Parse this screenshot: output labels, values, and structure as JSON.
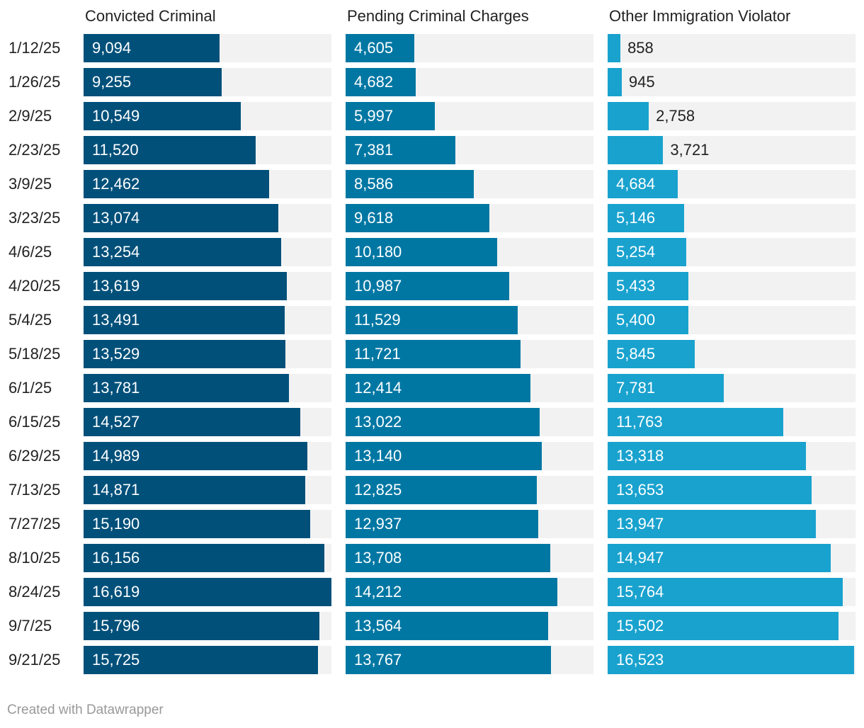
{
  "chart_data": {
    "type": "bar",
    "orientation": "horizontal",
    "layout": "small-multiples",
    "categories": [
      "1/12/25",
      "1/26/25",
      "2/9/25",
      "2/23/25",
      "3/9/25",
      "3/23/25",
      "4/6/25",
      "4/20/25",
      "5/4/25",
      "5/18/25",
      "6/1/25",
      "6/15/25",
      "6/29/25",
      "7/13/25",
      "7/27/25",
      "8/10/25",
      "8/24/25",
      "9/7/25",
      "9/21/25"
    ],
    "xlim": [
      0,
      16619
    ],
    "grid": false,
    "series": [
      {
        "name": "Convicted Criminal",
        "color": "#00507a",
        "values": [
          9094,
          9255,
          10549,
          11520,
          12462,
          13074,
          13254,
          13619,
          13491,
          13529,
          13781,
          14527,
          14989,
          14871,
          15190,
          16156,
          16619,
          15796,
          15725
        ]
      },
      {
        "name": "Pending Criminal Charges",
        "color": "#0077a3",
        "values": [
          4605,
          4682,
          5997,
          7381,
          8586,
          9618,
          10180,
          10987,
          11529,
          11721,
          12414,
          13022,
          13140,
          12825,
          12937,
          13708,
          14212,
          13564,
          13767
        ]
      },
      {
        "name": "Other Immigration Violator",
        "color": "#19a2ce",
        "values": [
          858,
          945,
          2758,
          3721,
          4684,
          5146,
          5254,
          5433,
          5400,
          5845,
          7781,
          11763,
          13318,
          13653,
          13947,
          14947,
          15764,
          15502,
          16523
        ]
      }
    ],
    "track_color": "#f2f2f2"
  },
  "footer": "Created with Datawrapper"
}
